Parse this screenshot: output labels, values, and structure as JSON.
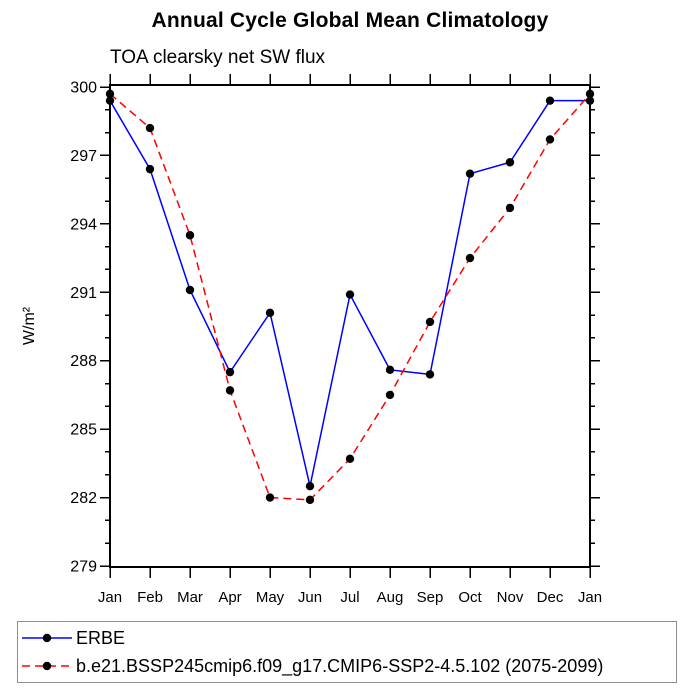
{
  "chart_data": {
    "type": "line",
    "title": "Annual Cycle Global Mean Climatology",
    "subtitle": "TOA clearsky net SW flux",
    "ylabel": "W/m²",
    "xlabel": "",
    "x_categories": [
      "Jan",
      "Feb",
      "Mar",
      "Apr",
      "May",
      "Jun",
      "Jul",
      "Aug",
      "Sep",
      "Oct",
      "Nov",
      "Dec",
      "Jan"
    ],
    "ylim": [
      279,
      300
    ],
    "ytick_major_step": 3,
    "ytick_minor_step": 1,
    "ytick_labels": [
      "279",
      "282",
      "285",
      "288",
      "291",
      "294",
      "297",
      "300"
    ],
    "grid": false,
    "legend_position": "bottom-left-box",
    "legend_border_color": "#8f8f8f",
    "axis_color": "#000000",
    "marker": "filled-circle",
    "marker_color": "#000000",
    "series": [
      {
        "name": "ERBE",
        "color": "#0000ff",
        "line_style": "solid",
        "values": [
          299.4,
          296.4,
          291.1,
          287.5,
          290.1,
          282.5,
          290.9,
          287.6,
          287.4,
          296.2,
          296.7,
          299.4,
          299.4
        ]
      },
      {
        "name": "b.e21.BSSP245cmip6.f09_g17.CMIP6-SSP2-4.5.102 (2075-2099)",
        "color": "#ff0000",
        "line_style": "dashed",
        "values": [
          299.7,
          298.2,
          293.5,
          286.7,
          282.0,
          281.9,
          283.7,
          286.5,
          289.7,
          292.5,
          294.7,
          297.7,
          299.7
        ]
      }
    ]
  }
}
